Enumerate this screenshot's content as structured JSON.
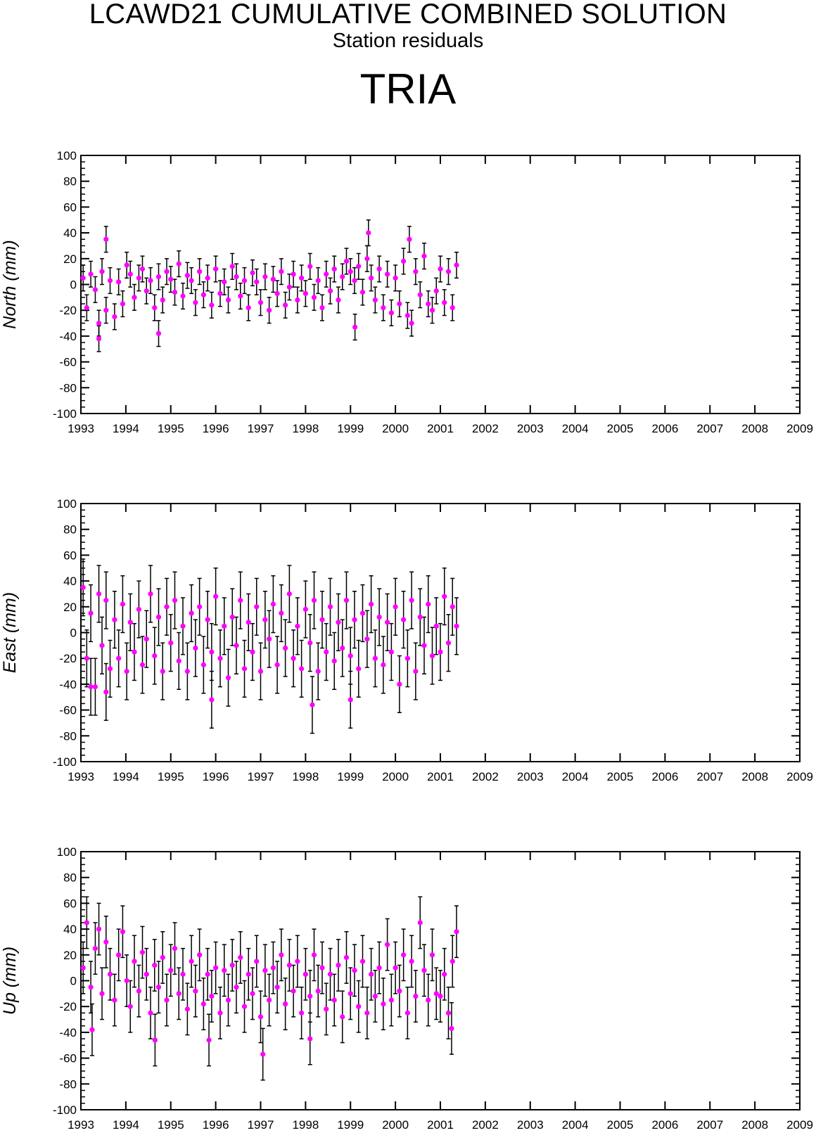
{
  "header": {
    "title": "LCAWD21 CUMULATIVE COMBINED SOLUTION",
    "subtitle": "Station residuals",
    "station": "TRIA"
  },
  "colors": {
    "point": "#ff00ff",
    "errorbar": "#000000",
    "axis": "#000000"
  },
  "chart_data": [
    {
      "type": "scatter",
      "name": "north-panel",
      "ylabel": "North (mm)",
      "xlim": [
        1993,
        2009
      ],
      "ylim": [
        -100,
        100
      ],
      "xticks": [
        1993,
        1994,
        1995,
        1996,
        1997,
        1998,
        1999,
        2000,
        2001,
        2002,
        2003,
        2004,
        2005,
        2006,
        2007,
        2008,
        2009
      ],
      "yticks": [
        -100,
        -80,
        -60,
        -40,
        -20,
        0,
        20,
        40,
        60,
        80,
        100
      ],
      "errorbars": true,
      "grid": false,
      "series": [
        {
          "x": [
            1993.05,
            1993.13,
            1993.22,
            1993.32,
            1993.4,
            1993.47,
            1993.56,
            1993.65,
            1993.75,
            1993.84,
            1993.93,
            1994.02,
            1994.1,
            1994.19,
            1994.29,
            1994.37,
            1994.46,
            1994.55,
            1994.64,
            1994.73,
            1994.82,
            1994.91,
            1995.0,
            1995.09,
            1995.18,
            1995.27,
            1995.37,
            1995.46,
            1995.55,
            1995.64,
            1995.73,
            1995.82,
            1995.91,
            1996.0,
            1996.1,
            1996.19,
            1996.28,
            1996.37,
            1996.46,
            1996.55,
            1996.64,
            1996.73,
            1996.82,
            1996.91,
            1997.0,
            1997.1,
            1997.19,
            1997.28,
            1997.37,
            1997.46,
            1997.55,
            1997.64,
            1997.73,
            1997.82,
            1997.91,
            1998.0,
            1998.1,
            1998.19,
            1998.28,
            1998.37,
            1998.46,
            1998.55,
            1998.64,
            1998.73,
            1998.82,
            1998.91,
            1999.0,
            1999.09,
            1999.18,
            1999.27,
            1999.37,
            1999.46,
            1999.55,
            1999.64,
            1999.73,
            1999.82,
            1999.91,
            2000.0,
            2000.09,
            2000.18,
            2000.27,
            2000.36,
            2000.45,
            2000.55,
            2000.64,
            2000.73,
            2000.82,
            2000.91,
            2001.0,
            2001.09,
            2001.18,
            2001.27,
            2001.36,
            1993.4,
            1993.56,
            1994.73,
            1999.1,
            1999.4,
            2000.31
          ],
          "y": [
            5,
            -18,
            8,
            -4,
            -30,
            10,
            -20,
            3,
            -25,
            2,
            -15,
            15,
            8,
            -10,
            5,
            12,
            -5,
            3,
            -18,
            6,
            -12,
            10,
            4,
            -6,
            16,
            -9,
            7,
            3,
            -14,
            10,
            -8,
            5,
            -16,
            12,
            -7,
            2,
            -12,
            14,
            6,
            -9,
            3,
            -18,
            9,
            2,
            -14,
            6,
            -20,
            4,
            -7,
            10,
            -16,
            -2,
            8,
            -12,
            5,
            -7,
            14,
            -10,
            3,
            -18,
            8,
            -5,
            12,
            -12,
            6,
            18,
            10,
            3,
            14,
            -6,
            20,
            5,
            -12,
            12,
            -18,
            8,
            -22,
            5,
            -15,
            18,
            -24,
            -30,
            10,
            -8,
            22,
            -15,
            -20,
            -5,
            12,
            -14,
            10,
            -18,
            15,
            -42,
            35,
            -38,
            -33,
            40,
            35
          ],
          "err": [
            10,
            10,
            10,
            10,
            10,
            10,
            10,
            10,
            10,
            10,
            10,
            10,
            10,
            10,
            10,
            10,
            10,
            10,
            10,
            10,
            10,
            10,
            10,
            10,
            10,
            10,
            10,
            10,
            10,
            10,
            10,
            10,
            10,
            10,
            10,
            10,
            10,
            10,
            10,
            10,
            10,
            10,
            10,
            10,
            10,
            10,
            10,
            10,
            10,
            10,
            10,
            10,
            10,
            10,
            10,
            10,
            10,
            10,
            10,
            10,
            10,
            10,
            10,
            10,
            10,
            10,
            10,
            10,
            10,
            10,
            10,
            10,
            10,
            10,
            10,
            10,
            10,
            10,
            10,
            10,
            10,
            10,
            10,
            10,
            10,
            10,
            10,
            10,
            10,
            10,
            10,
            10,
            10,
            10,
            10,
            10,
            10,
            10,
            10
          ]
        }
      ]
    },
    {
      "type": "scatter",
      "name": "east-panel",
      "ylabel": "East (mm)",
      "xlim": [
        1993,
        2009
      ],
      "ylim": [
        -100,
        100
      ],
      "xticks": [
        1993,
        1994,
        1995,
        1996,
        1997,
        1998,
        1999,
        2000,
        2001,
        2002,
        2003,
        2004,
        2005,
        2006,
        2007,
        2008,
        2009
      ],
      "yticks": [
        -100,
        -80,
        -60,
        -40,
        -20,
        0,
        20,
        40,
        60,
        80,
        100
      ],
      "errorbars": true,
      "grid": false,
      "series": [
        {
          "x": [
            1993.05,
            1993.13,
            1993.22,
            1993.32,
            1993.4,
            1993.47,
            1993.56,
            1993.65,
            1993.75,
            1993.84,
            1993.93,
            1994.02,
            1994.1,
            1994.19,
            1994.29,
            1994.37,
            1994.46,
            1994.55,
            1994.64,
            1994.73,
            1994.82,
            1994.91,
            1995.0,
            1995.09,
            1995.18,
            1995.27,
            1995.37,
            1995.46,
            1995.55,
            1995.64,
            1995.73,
            1995.82,
            1995.91,
            1996.0,
            1996.1,
            1996.19,
            1996.28,
            1996.37,
            1996.46,
            1996.55,
            1996.64,
            1996.73,
            1996.82,
            1996.91,
            1997.0,
            1997.1,
            1997.19,
            1997.28,
            1997.37,
            1997.46,
            1997.55,
            1997.64,
            1997.73,
            1997.82,
            1997.91,
            1998.0,
            1998.1,
            1998.19,
            1998.28,
            1998.37,
            1998.46,
            1998.55,
            1998.64,
            1998.73,
            1998.82,
            1998.91,
            1999.0,
            1999.09,
            1999.18,
            1999.27,
            1999.37,
            1999.46,
            1999.55,
            1999.64,
            1999.73,
            1999.82,
            1999.91,
            2000.0,
            2000.09,
            2000.18,
            2000.27,
            2000.36,
            2000.45,
            2000.55,
            2000.64,
            2000.73,
            2000.82,
            2000.91,
            2001.0,
            2001.09,
            2001.18,
            2001.27,
            2001.36,
            1993.22,
            1993.56,
            1995.91,
            1998.15,
            1999.0
          ],
          "y": [
            35,
            -20,
            15,
            -42,
            30,
            -10,
            25,
            -28,
            10,
            -20,
            22,
            -30,
            8,
            -15,
            18,
            -25,
            -5,
            30,
            -18,
            12,
            -30,
            20,
            -8,
            25,
            -22,
            5,
            -30,
            15,
            -12,
            20,
            -25,
            10,
            -15,
            28,
            -20,
            5,
            -35,
            12,
            -10,
            25,
            -28,
            8,
            -15,
            20,
            -30,
            10,
            -5,
            22,
            -25,
            15,
            -12,
            30,
            -20,
            5,
            -28,
            18,
            -8,
            25,
            -30,
            10,
            -15,
            20,
            -22,
            8,
            -12,
            25,
            -18,
            10,
            -28,
            15,
            -5,
            22,
            -20,
            12,
            -25,
            8,
            -15,
            20,
            -40,
            10,
            -20,
            25,
            -30,
            12,
            -10,
            22,
            -18,
            5,
            -15,
            28,
            -8,
            20,
            5,
            -42,
            -46,
            -52,
            -56,
            -52
          ],
          "err": [
            22,
            22,
            22,
            22,
            22,
            22,
            22,
            22,
            22,
            22,
            22,
            22,
            22,
            22,
            22,
            22,
            22,
            22,
            22,
            22,
            22,
            22,
            22,
            22,
            22,
            22,
            22,
            22,
            22,
            22,
            22,
            22,
            22,
            22,
            22,
            22,
            22,
            22,
            22,
            22,
            22,
            22,
            22,
            22,
            22,
            22,
            22,
            22,
            22,
            22,
            22,
            22,
            22,
            22,
            22,
            22,
            22,
            22,
            22,
            22,
            22,
            22,
            22,
            22,
            22,
            22,
            22,
            22,
            22,
            22,
            22,
            22,
            22,
            22,
            22,
            22,
            22,
            22,
            22,
            22,
            22,
            22,
            22,
            22,
            22,
            22,
            22,
            22,
            22,
            22,
            22,
            22,
            22,
            22,
            22,
            22,
            22,
            22
          ]
        }
      ]
    },
    {
      "type": "scatter",
      "name": "up-panel",
      "ylabel": "Up (mm)",
      "xlim": [
        1993,
        2009
      ],
      "ylim": [
        -100,
        100
      ],
      "xticks": [
        1993,
        1994,
        1995,
        1996,
        1997,
        1998,
        1999,
        2000,
        2001,
        2002,
        2003,
        2004,
        2005,
        2006,
        2007,
        2008,
        2009
      ],
      "yticks": [
        -100,
        -80,
        -60,
        -40,
        -20,
        0,
        20,
        40,
        60,
        80,
        100
      ],
      "errorbars": true,
      "grid": false,
      "series": [
        {
          "x": [
            1993.05,
            1993.13,
            1993.22,
            1993.32,
            1993.4,
            1993.47,
            1993.56,
            1993.65,
            1993.75,
            1993.84,
            1993.93,
            1994.02,
            1994.1,
            1994.19,
            1994.29,
            1994.37,
            1994.46,
            1994.55,
            1994.64,
            1994.73,
            1994.82,
            1994.91,
            1995.0,
            1995.09,
            1995.18,
            1995.27,
            1995.37,
            1995.46,
            1995.55,
            1995.64,
            1995.73,
            1995.82,
            1995.91,
            1996.0,
            1996.1,
            1996.19,
            1996.28,
            1996.37,
            1996.46,
            1996.55,
            1996.64,
            1996.73,
            1996.82,
            1996.91,
            1997.0,
            1997.1,
            1997.19,
            1997.28,
            1997.37,
            1997.46,
            1997.55,
            1997.64,
            1997.73,
            1997.82,
            1997.91,
            1998.0,
            1998.1,
            1998.19,
            1998.28,
            1998.37,
            1998.46,
            1998.55,
            1998.64,
            1998.73,
            1998.82,
            1998.91,
            1999.0,
            1999.09,
            1999.18,
            1999.27,
            1999.37,
            1999.46,
            1999.55,
            1999.64,
            1999.73,
            1999.82,
            1999.91,
            2000.0,
            2000.09,
            2000.18,
            2000.27,
            2000.36,
            2000.45,
            2000.55,
            2000.64,
            2000.73,
            2000.82,
            2000.91,
            2001.0,
            2001.09,
            2001.18,
            2001.27,
            2001.36,
            1993.25,
            1994.65,
            1995.85,
            1997.05,
            1998.1,
            2001.25
          ],
          "y": [
            10,
            45,
            -5,
            25,
            40,
            -10,
            30,
            5,
            -15,
            20,
            38,
            0,
            -20,
            15,
            -8,
            22,
            5,
            -25,
            12,
            -5,
            18,
            -15,
            8,
            25,
            -10,
            5,
            -22,
            15,
            -8,
            20,
            -18,
            5,
            -12,
            10,
            -25,
            8,
            -15,
            12,
            -5,
            18,
            -20,
            5,
            -10,
            15,
            -28,
            8,
            -15,
            10,
            -5,
            20,
            -18,
            12,
            -8,
            15,
            -25,
            5,
            -12,
            20,
            -8,
            10,
            -22,
            5,
            -15,
            12,
            -28,
            18,
            -10,
            8,
            -20,
            15,
            -25,
            5,
            -12,
            10,
            -18,
            28,
            -15,
            10,
            -8,
            20,
            -25,
            15,
            -12,
            45,
            8,
            -15,
            20,
            -10,
            -12,
            5,
            -25,
            15,
            38,
            -38,
            -46,
            -46,
            -57,
            -45,
            -37
          ],
          "err": [
            20,
            20,
            20,
            20,
            20,
            20,
            20,
            20,
            20,
            20,
            20,
            20,
            20,
            20,
            20,
            20,
            20,
            20,
            20,
            20,
            20,
            20,
            20,
            20,
            20,
            20,
            20,
            20,
            20,
            20,
            20,
            20,
            20,
            20,
            20,
            20,
            20,
            20,
            20,
            20,
            20,
            20,
            20,
            20,
            20,
            20,
            20,
            20,
            20,
            20,
            20,
            20,
            20,
            20,
            20,
            20,
            20,
            20,
            20,
            20,
            20,
            20,
            20,
            20,
            20,
            20,
            20,
            20,
            20,
            20,
            20,
            20,
            20,
            20,
            20,
            20,
            20,
            20,
            20,
            20,
            20,
            20,
            20,
            20,
            20,
            20,
            20,
            20,
            20,
            20,
            20,
            20,
            20,
            20,
            20,
            20,
            20,
            20,
            20
          ]
        }
      ]
    }
  ]
}
